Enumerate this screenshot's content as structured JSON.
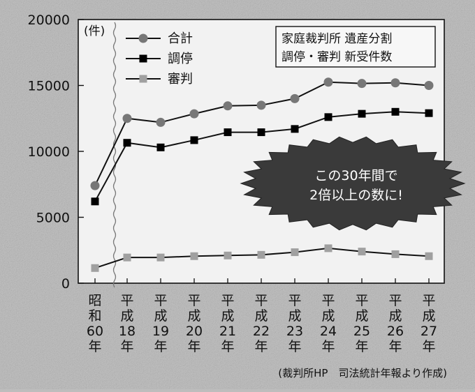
{
  "chart_data": {
    "type": "line",
    "y_unit": "(件)",
    "title_lines": [
      "家庭裁判所 遺産分割",
      "調停・審判 新受件数"
    ],
    "annotation_lines": [
      "この30年間で",
      "2倍以上の数に!"
    ],
    "source": "(裁判所HP　司法統計年報より作成)",
    "ylim": [
      0,
      20000
    ],
    "y_ticks": [
      0,
      5000,
      10000,
      15000,
      20000
    ],
    "y_tick_labels": [
      "0",
      "5000",
      "10000",
      "15000",
      "20000"
    ],
    "grid": false,
    "legend_position": "top-left",
    "axis_break_after_category": 0,
    "categories": [
      [
        "昭",
        "和",
        "60",
        "年"
      ],
      [
        "平",
        "成",
        "18",
        "年"
      ],
      [
        "平",
        "成",
        "19",
        "年"
      ],
      [
        "平",
        "成",
        "20",
        "年"
      ],
      [
        "平",
        "成",
        "21",
        "年"
      ],
      [
        "平",
        "成",
        "22",
        "年"
      ],
      [
        "平",
        "成",
        "23",
        "年"
      ],
      [
        "平",
        "成",
        "24",
        "年"
      ],
      [
        "平",
        "成",
        "25",
        "年"
      ],
      [
        "平",
        "成",
        "26",
        "年"
      ],
      [
        "平",
        "成",
        "27",
        "年"
      ]
    ],
    "series": [
      {
        "name": "合計",
        "marker": "circle",
        "color": "#777777",
        "values": [
          7400,
          12500,
          12200,
          12850,
          13450,
          13500,
          14000,
          15250,
          15150,
          15200,
          15000
        ]
      },
      {
        "name": "調停",
        "marker": "square",
        "color": "#000000",
        "values": [
          6200,
          10650,
          10300,
          10850,
          11450,
          11450,
          11700,
          12600,
          12850,
          13000,
          12900
        ]
      },
      {
        "name": "審判",
        "marker": "square",
        "color": "#a0a0a0",
        "values": [
          1150,
          1950,
          1950,
          2050,
          2100,
          2150,
          2350,
          2650,
          2400,
          2200,
          2050
        ]
      }
    ]
  }
}
